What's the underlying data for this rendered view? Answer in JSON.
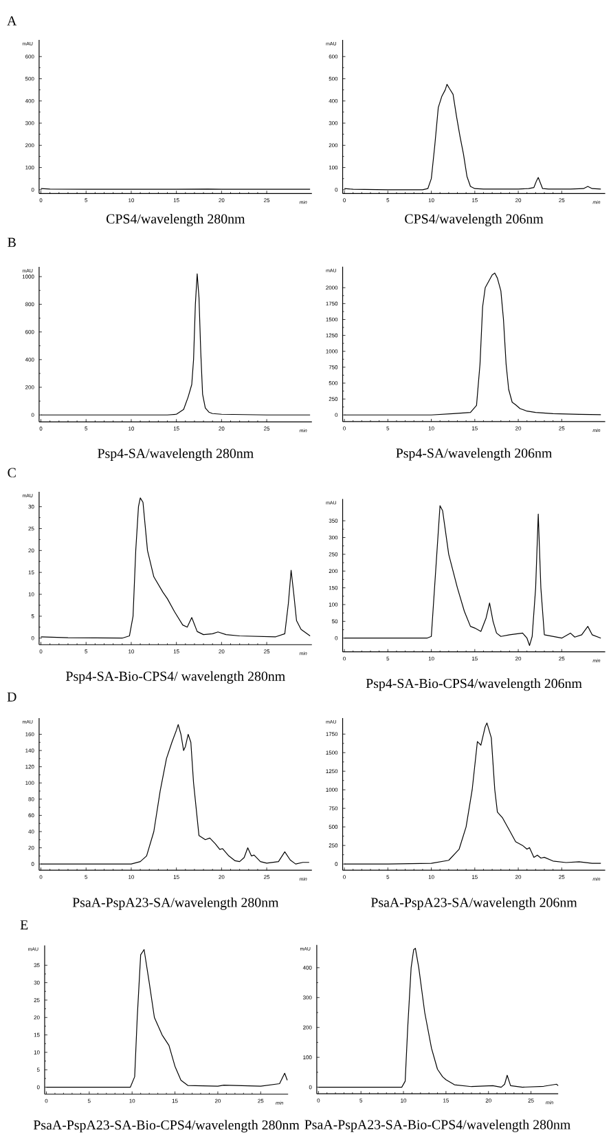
{
  "chart_data": [
    {
      "type": "line",
      "title": "CPS4/wavelength 280nm",
      "annotations": [
        "A"
      ],
      "xlabel": "min",
      "ylabel": "mAU",
      "xlim": [
        -0.2,
        30
      ],
      "xticks": [
        0,
        5,
        10,
        15,
        20,
        25
      ],
      "ylim": [
        -17,
        675
      ],
      "yticks": [
        0,
        100,
        200,
        300,
        400,
        500,
        600
      ],
      "series": [
        {
          "color": "#000000",
          "x": [
            0,
            1,
            5,
            10,
            15,
            18.5,
            20,
            25,
            29.8
          ],
          "values": [
            5,
            3,
            2,
            2,
            2,
            3,
            2,
            2,
            2
          ]
        }
      ]
    },
    {
      "type": "line",
      "title": "CPS4/wavelength 206nm",
      "xlabel": "min",
      "ylabel": "mAU",
      "xlim": [
        -0.2,
        30
      ],
      "xticks": [
        0,
        5,
        10,
        15,
        20,
        25
      ],
      "ylim": [
        -17,
        675
      ],
      "yticks": [
        0,
        100,
        200,
        300,
        400,
        500,
        600
      ],
      "series": [
        {
          "color": "#000000",
          "x": [
            0,
            1,
            5,
            9,
            9.6,
            10,
            10.4,
            10.8,
            11.2,
            11.6,
            11.8,
            12.1,
            12.5,
            12.9,
            13.3,
            13.7,
            14.1,
            14.5,
            15,
            16,
            20,
            21.2,
            21.8,
            22.1,
            22.3,
            22.5,
            22.8,
            23.5,
            26,
            27.5,
            28,
            28.5,
            29.5
          ],
          "values": [
            5,
            2,
            0,
            0,
            5,
            50,
            200,
            370,
            420,
            450,
            475,
            455,
            430,
            330,
            240,
            160,
            60,
            15,
            5,
            3,
            3,
            5,
            10,
            40,
            55,
            35,
            5,
            3,
            3,
            5,
            15,
            5,
            3
          ]
        }
      ]
    },
    {
      "type": "line",
      "title": "Psp4-SA/wavelength 280nm",
      "annotations": [
        "B"
      ],
      "xlabel": "min",
      "ylabel": "mAU",
      "xlim": [
        -0.2,
        30
      ],
      "xticks": [
        0,
        5,
        10,
        15,
        20,
        25
      ],
      "ylim": [
        -50,
        1070
      ],
      "yticks": [
        0,
        200,
        400,
        600,
        800,
        1000
      ],
      "series": [
        {
          "color": "#000000",
          "x": [
            0,
            5,
            10,
            14,
            15,
            15.8,
            16.3,
            16.7,
            16.9,
            17.1,
            17.3,
            17.5,
            17.7,
            17.9,
            18.2,
            18.6,
            19,
            20,
            25,
            29.8
          ],
          "values": [
            0,
            0,
            0,
            0,
            5,
            40,
            130,
            220,
            400,
            800,
            1020,
            850,
            450,
            150,
            50,
            20,
            10,
            5,
            0,
            0
          ]
        }
      ]
    },
    {
      "type": "line",
      "title": "Psp4-SA/wavelength 206nm",
      "xlabel": "min",
      "ylabel": "mAU",
      "xlim": [
        -0.2,
        30
      ],
      "xticks": [
        0,
        5,
        10,
        15,
        20,
        25
      ],
      "ylim": [
        -105,
        2330
      ],
      "yticks": [
        0,
        250,
        500,
        750,
        1000,
        1250,
        1500,
        1750,
        2000
      ],
      "series": [
        {
          "color": "#000000",
          "x": [
            0,
            5,
            10,
            12.5,
            14.5,
            15.2,
            15.6,
            15.9,
            16.2,
            16.6,
            17.0,
            17.3,
            17.6,
            18.0,
            18.3,
            18.6,
            18.9,
            19.3,
            19.7,
            20.2,
            21,
            22,
            24,
            27,
            29.5
          ],
          "values": [
            0,
            0,
            0,
            20,
            40,
            150,
            800,
            1700,
            2000,
            2100,
            2200,
            2230,
            2150,
            1950,
            1500,
            800,
            400,
            200,
            160,
            100,
            60,
            40,
            20,
            10,
            5
          ]
        }
      ]
    },
    {
      "type": "line",
      "title": "Psp4-SA-Bio-CPS4/ wavelength 280nm",
      "annotations": [
        "C"
      ],
      "xlabel": "min",
      "ylabel": "mAU",
      "xlim": [
        -0.2,
        30
      ],
      "xticks": [
        0,
        5,
        10,
        15,
        20,
        25
      ],
      "ylim": [
        -1.5,
        33.4
      ],
      "yticks": [
        0,
        5,
        10,
        15,
        20,
        25,
        30
      ],
      "series": [
        {
          "color": "#000000",
          "x": [
            0,
            3,
            9,
            9.8,
            10.2,
            10.5,
            10.8,
            11,
            11.3,
            11.8,
            12.5,
            13.5,
            14,
            14.8,
            15.7,
            16.2,
            16.7,
            17.3,
            18,
            19,
            19.6,
            20.5,
            22,
            26,
            27,
            27.4,
            27.7,
            28,
            28.3,
            28.8,
            29.8
          ],
          "values": [
            0.3,
            0.1,
            0,
            0.5,
            5,
            20,
            30,
            32,
            31,
            20,
            14,
            10.5,
            9,
            6,
            3,
            2.5,
            4.7,
            1.5,
            0.8,
            1,
            1.4,
            0.8,
            0.5,
            0.3,
            1,
            8,
            15.5,
            10,
            4,
            2,
            0.5
          ]
        }
      ]
    },
    {
      "type": "line",
      "title": "Psp4-SA-Bio-CPS4/wavelength 206nm",
      "xlabel": "min",
      "ylabel": "mAU",
      "xlim": [
        -0.2,
        30
      ],
      "xticks": [
        0,
        5,
        10,
        15,
        20,
        25
      ],
      "ylim": [
        -41,
        415
      ],
      "yticks": [
        0,
        50,
        100,
        150,
        200,
        250,
        300,
        350
      ],
      "series": [
        {
          "color": "#000000",
          "x": [
            0,
            5,
            9.5,
            10,
            10.5,
            11,
            11.3,
            12,
            13,
            13.8,
            14.5,
            15,
            15.7,
            16.3,
            16.7,
            17.1,
            17.5,
            18,
            19,
            20.5,
            21,
            21.3,
            21.6,
            22,
            22.3,
            22.6,
            23,
            25,
            26,
            26.5,
            27.3,
            28,
            28.5,
            29.5
          ],
          "values": [
            0,
            0,
            0,
            5,
            200,
            395,
            380,
            250,
            150,
            80,
            35,
            30,
            20,
            60,
            105,
            50,
            15,
            5,
            10,
            15,
            0,
            -22,
            5,
            150,
            370,
            150,
            10,
            0,
            15,
            3,
            10,
            35,
            10,
            0
          ]
        }
      ]
    },
    {
      "type": "line",
      "title": "PsaA-PspA23-SA/wavelength 280nm",
      "annotations": [
        "D"
      ],
      "xlabel": "min",
      "ylabel": "mAU",
      "xlim": [
        -0.2,
        30
      ],
      "xticks": [
        0,
        5,
        10,
        15,
        20,
        25
      ],
      "ylim": [
        -7.7,
        180
      ],
      "yticks": [
        0,
        20,
        40,
        60,
        80,
        100,
        120,
        140,
        160
      ],
      "series": [
        {
          "color": "#000000",
          "x": [
            0,
            5,
            10,
            11,
            11.7,
            12.5,
            13.2,
            13.9,
            14.5,
            15,
            15.2,
            15.5,
            15.8,
            16,
            16.3,
            16.6,
            16.9,
            17.5,
            18.2,
            18.7,
            19.3,
            19.8,
            20.1,
            20.8,
            21.5,
            22,
            22.5,
            22.9,
            23.3,
            23.6,
            24.3,
            25,
            26.3,
            27,
            27.6,
            28.2,
            29,
            29.7
          ],
          "values": [
            0,
            0,
            0,
            3,
            10,
            40,
            90,
            130,
            150,
            165,
            172,
            160,
            140,
            145,
            160,
            150,
            100,
            35,
            30,
            32,
            25,
            18,
            19,
            10,
            4,
            3,
            8,
            20,
            10,
            11,
            3,
            1,
            3,
            15,
            5,
            0,
            2,
            2
          ]
        }
      ]
    },
    {
      "type": "line",
      "title": "PsaA-PspA23-SA/wavelength 206nm",
      "xlabel": "min",
      "ylabel": "mAU",
      "xlim": [
        -0.2,
        30
      ],
      "xticks": [
        0,
        5,
        10,
        15,
        20,
        25
      ],
      "ylim": [
        -84,
        1966
      ],
      "yticks": [
        0,
        250,
        500,
        750,
        1000,
        1250,
        1500,
        1750
      ],
      "series": [
        {
          "color": "#000000",
          "x": [
            0,
            5,
            10,
            12,
            13.2,
            14,
            14.7,
            15.3,
            15.7,
            16.2,
            16.4,
            16.9,
            17.3,
            17.6,
            18.2,
            19,
            19.7,
            20.5,
            21,
            21.3,
            21.8,
            22.2,
            22.6,
            23,
            24,
            25.5,
            27,
            28.5,
            29.5
          ],
          "values": [
            0,
            0,
            10,
            50,
            200,
            500,
            1000,
            1650,
            1600,
            1850,
            1900,
            1700,
            1000,
            700,
            620,
            450,
            300,
            250,
            200,
            220,
            90,
            120,
            80,
            90,
            40,
            20,
            30,
            10,
            10
          ]
        }
      ]
    },
    {
      "type": "line",
      "title": "PsaA-PspA23-SA-Bio-CPS4/wavelength 280nm",
      "annotations": [
        "E"
      ],
      "xlabel": "min",
      "ylabel": "mAU",
      "xlim": [
        -0.2,
        28.2
      ],
      "xticks": [
        0,
        5,
        10,
        15,
        20,
        25
      ],
      "ylim": [
        -2,
        40.7
      ],
      "yticks": [
        0,
        5,
        10,
        15,
        20,
        25,
        30,
        35
      ],
      "series": [
        {
          "color": "#000000",
          "x": [
            0,
            5,
            9.8,
            10.3,
            10.6,
            11,
            11.4,
            12,
            12.6,
            13.5,
            14.3,
            15,
            15.7,
            16.5,
            20,
            20.7,
            25,
            27.2,
            27.8,
            28.1
          ],
          "values": [
            0,
            0,
            0,
            3,
            20,
            38,
            39.5,
            30,
            20,
            15,
            12,
            6,
            2,
            0.5,
            0.3,
            0.6,
            0.3,
            1,
            4,
            2
          ]
        }
      ]
    },
    {
      "type": "line",
      "title": "PsaA-PspA23-SA-Bio-CPS4/wavelength 280nm",
      "xlabel": "min",
      "ylabel": "mAU",
      "xlim": [
        -0.2,
        28.2
      ],
      "xticks": [
        0,
        5,
        10,
        15,
        20,
        25
      ],
      "ylim": [
        -22,
        476
      ],
      "yticks": [
        0,
        100,
        200,
        300,
        400
      ],
      "series": [
        {
          "color": "#000000",
          "x": [
            0,
            5,
            9.8,
            10.2,
            10.5,
            10.9,
            11.2,
            11.4,
            11.8,
            12.5,
            13.3,
            14,
            14.6,
            15,
            16,
            18,
            20.5,
            21.5,
            21.9,
            22.2,
            22.6,
            24,
            26.5,
            28,
            28.2
          ],
          "values": [
            0,
            0,
            0,
            20,
            200,
            400,
            460,
            465,
            400,
            250,
            130,
            60,
            35,
            25,
            8,
            2,
            5,
            0,
            10,
            40,
            5,
            0,
            3,
            10,
            5
          ]
        }
      ]
    }
  ]
}
